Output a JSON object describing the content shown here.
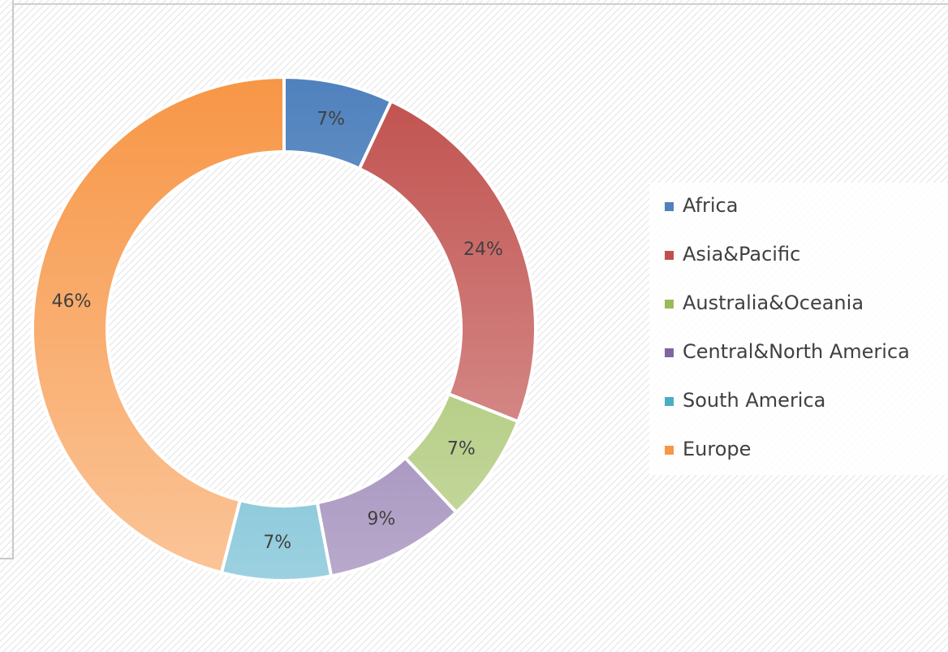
{
  "chart_data": {
    "type": "pie",
    "categories": [
      "Africa",
      "Asia&Pacific",
      "Australia&Oceania",
      "Central&North America",
      "South America",
      "Europe"
    ],
    "values": [
      7,
      24,
      7,
      9,
      7,
      46
    ],
    "value_labels": [
      "7%",
      "24%",
      "7%",
      "9%",
      "7%",
      "46%"
    ],
    "colors": [
      "#4f81bd",
      "#c0504d",
      "#9bbb59",
      "#8064a2",
      "#4bacc6",
      "#f79646"
    ],
    "donut": true,
    "legend": "right"
  }
}
